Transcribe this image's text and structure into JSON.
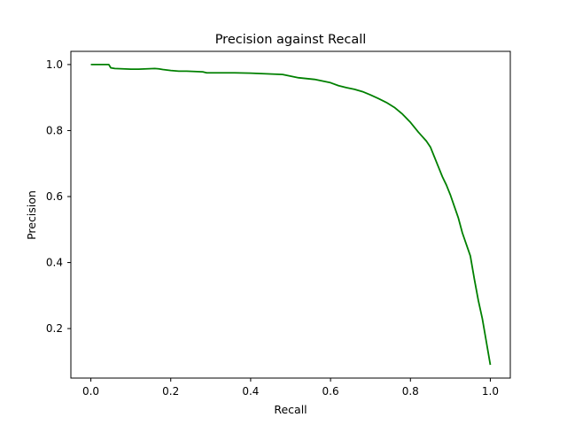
{
  "chart_data": {
    "type": "line",
    "title": "Precision against Recall",
    "xlabel": "Recall",
    "ylabel": "Precision",
    "xlim": [
      -0.05,
      1.05
    ],
    "ylim": [
      0.05,
      1.04
    ],
    "xticks": [
      0.0,
      0.2,
      0.4,
      0.6,
      0.8,
      1.0
    ],
    "xtick_labels": [
      "0.0",
      "0.2",
      "0.4",
      "0.6",
      "0.8",
      "1.0"
    ],
    "yticks": [
      0.2,
      0.4,
      0.6,
      0.8,
      1.0
    ],
    "ytick_labels": [
      "0.2",
      "0.4",
      "0.6",
      "0.8",
      "1.0"
    ],
    "grid": false,
    "legend": "none",
    "series": [
      {
        "color": "#008000",
        "x": [
          0.0,
          0.045,
          0.05,
          0.06,
          0.08,
          0.1,
          0.12,
          0.14,
          0.16,
          0.17,
          0.18,
          0.2,
          0.22,
          0.24,
          0.28,
          0.29,
          0.32,
          0.36,
          0.4,
          0.44,
          0.48,
          0.5,
          0.52,
          0.56,
          0.6,
          0.62,
          0.64,
          0.66,
          0.68,
          0.7,
          0.72,
          0.74,
          0.76,
          0.78,
          0.8,
          0.82,
          0.84,
          0.85,
          0.86,
          0.87,
          0.88,
          0.89,
          0.9,
          0.91,
          0.92,
          0.93,
          0.94,
          0.95,
          0.96,
          0.97,
          0.98,
          0.99,
          1.0
        ],
        "y": [
          1.0,
          1.0,
          0.99,
          0.988,
          0.987,
          0.986,
          0.986,
          0.987,
          0.988,
          0.987,
          0.985,
          0.982,
          0.98,
          0.98,
          0.978,
          0.975,
          0.975,
          0.975,
          0.974,
          0.972,
          0.97,
          0.965,
          0.96,
          0.955,
          0.945,
          0.936,
          0.93,
          0.925,
          0.918,
          0.908,
          0.897,
          0.885,
          0.87,
          0.85,
          0.825,
          0.795,
          0.768,
          0.75,
          0.72,
          0.69,
          0.66,
          0.635,
          0.605,
          0.57,
          0.535,
          0.49,
          0.455,
          0.42,
          0.35,
          0.285,
          0.23,
          0.16,
          0.09
        ]
      }
    ]
  }
}
